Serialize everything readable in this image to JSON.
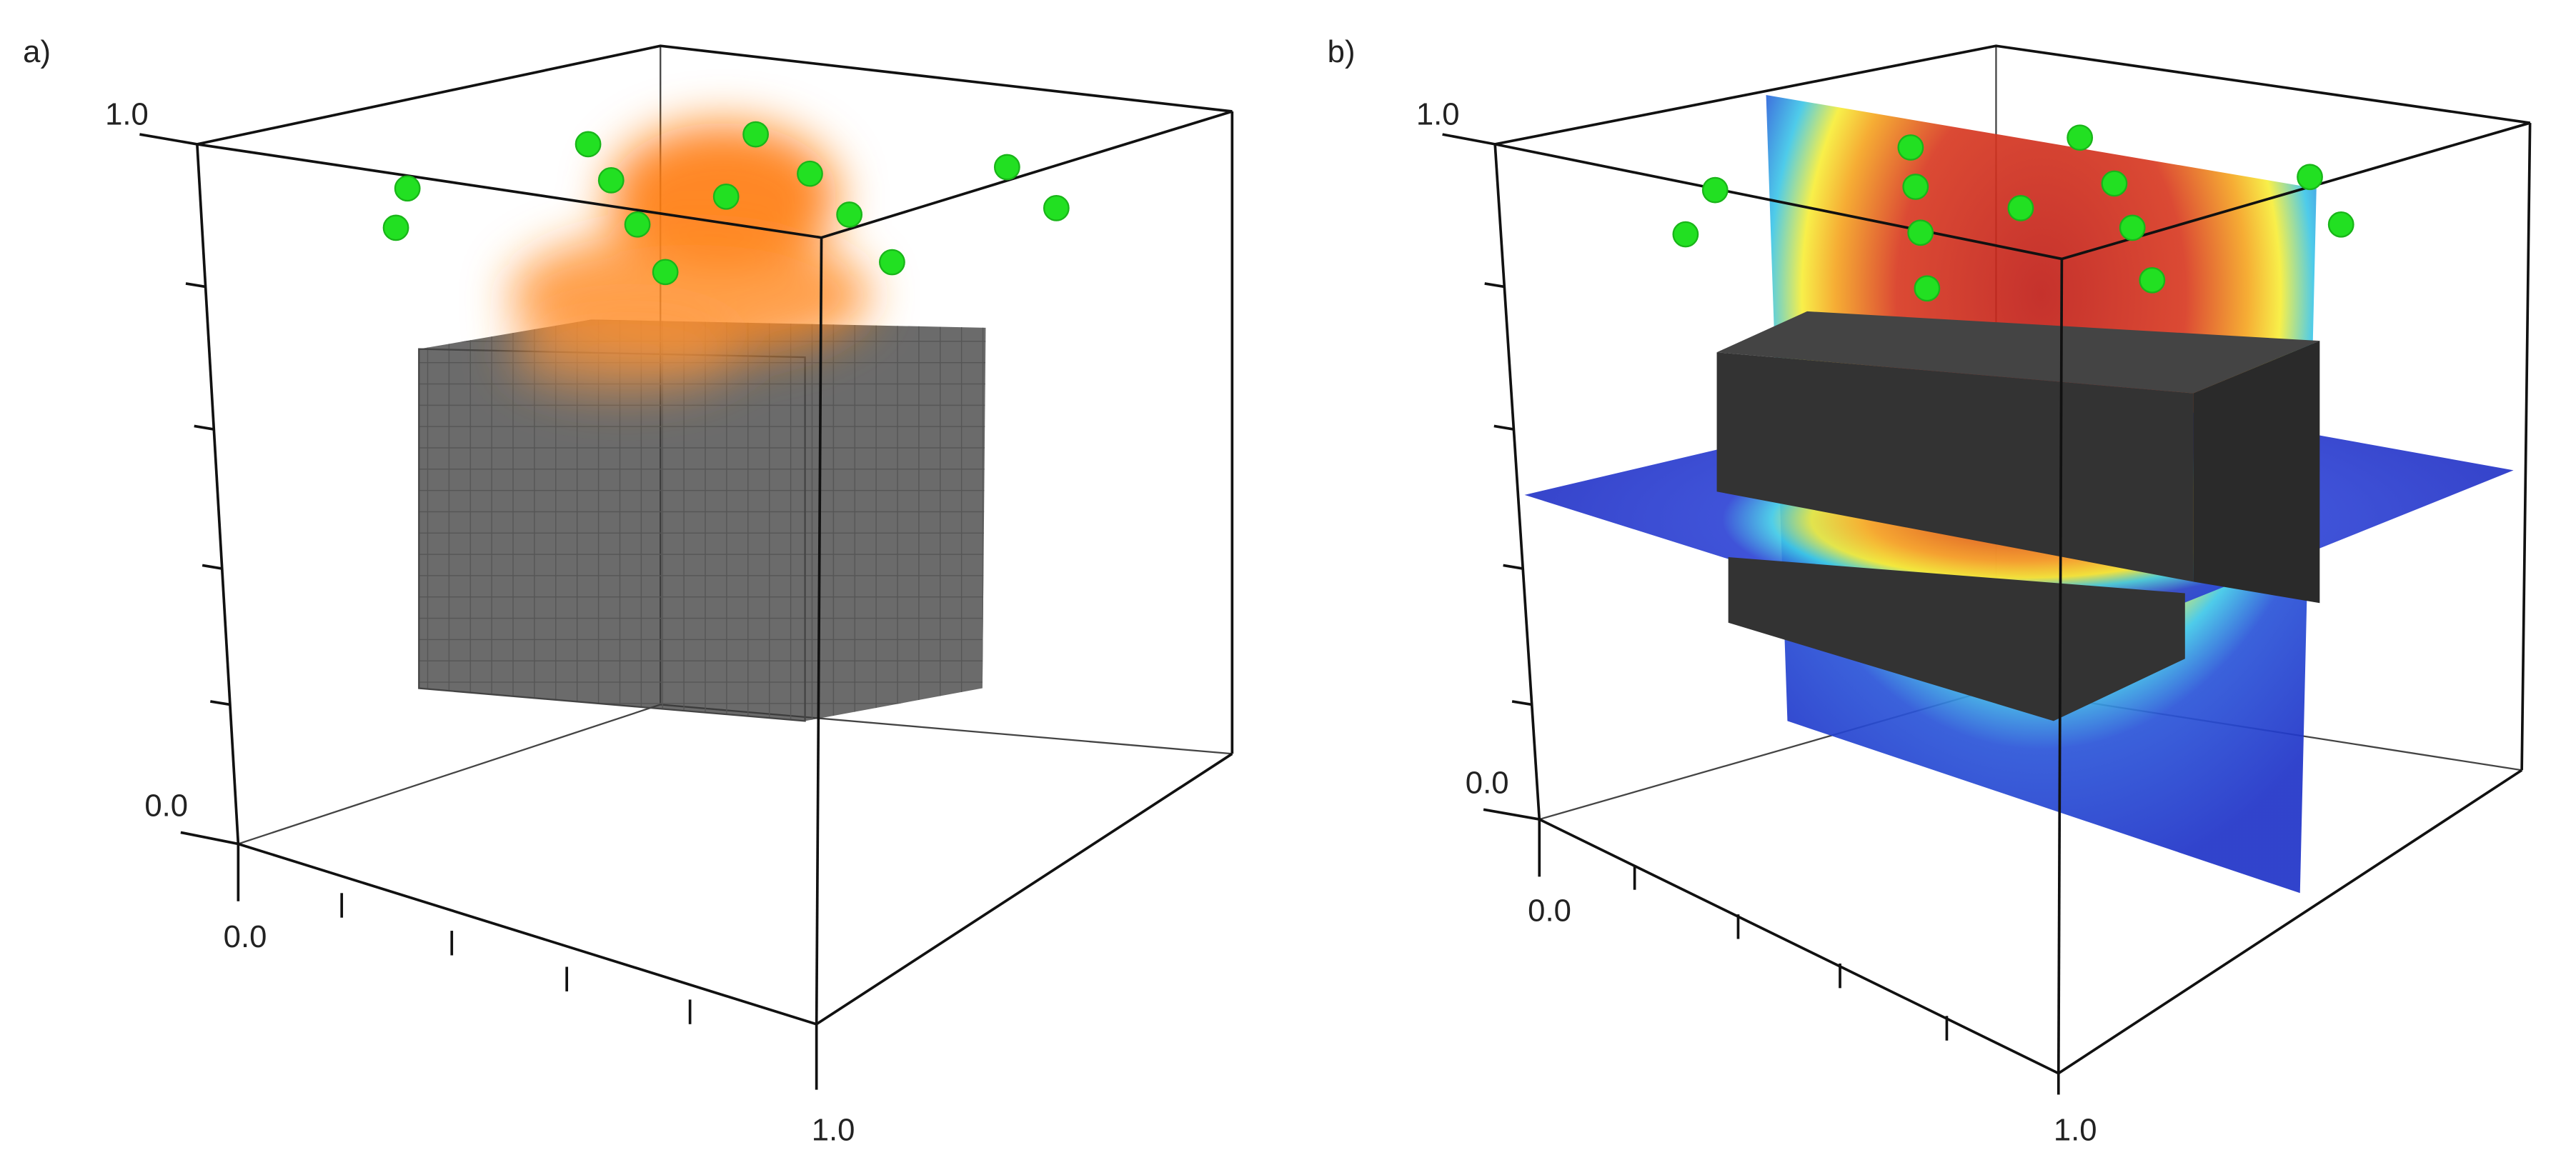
{
  "panels": [
    {
      "label": "a)",
      "vertical_axis_top": "1.0",
      "vertical_axis_bottom": "0.0",
      "depth_axis_start": "0.0",
      "depth_axis_end": "1.0"
    },
    {
      "label": "b)",
      "vertical_axis_top": "1.0",
      "vertical_axis_bottom": "0.0",
      "depth_axis_start": "0.0",
      "depth_axis_end": "1.0"
    }
  ]
}
